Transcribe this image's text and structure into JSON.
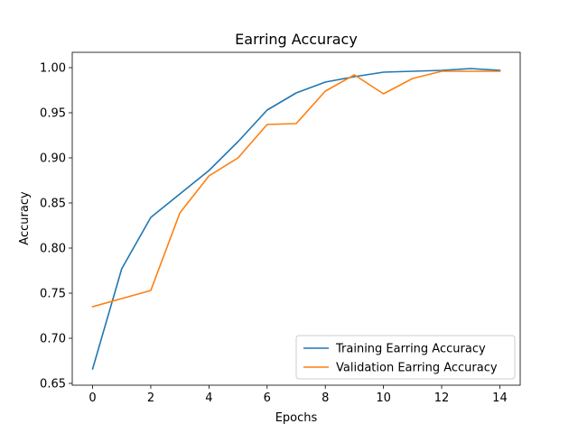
{
  "chart_data": {
    "type": "line",
    "title": "Earring Accuracy",
    "xlabel": "Epochs",
    "ylabel": "Accuracy",
    "xlim": [
      -0.7,
      14.7
    ],
    "ylim": [
      0.648,
      1.017
    ],
    "xticks": [
      0,
      2,
      4,
      6,
      8,
      10,
      12,
      14
    ],
    "xtick_labels": [
      "0",
      "2",
      "4",
      "6",
      "8",
      "10",
      "12",
      "14"
    ],
    "yticks": [
      0.65,
      0.7,
      0.75,
      0.8,
      0.85,
      0.9,
      0.95,
      1.0
    ],
    "ytick_labels": [
      "0.65",
      "0.70",
      "0.75",
      "0.80",
      "0.85",
      "0.90",
      "0.95",
      "1.00"
    ],
    "grid": false,
    "legend_position": "lower-right",
    "x": [
      0,
      1,
      2,
      3,
      4,
      5,
      6,
      7,
      8,
      9,
      10,
      11,
      12,
      13,
      14
    ],
    "series": [
      {
        "name": "Training Earring Accuracy",
        "color": "#1f77b4",
        "values": [
          0.666,
          0.777,
          0.834,
          0.86,
          0.886,
          0.918,
          0.953,
          0.972,
          0.984,
          0.99,
          0.995,
          0.996,
          0.997,
          0.999,
          0.997
        ]
      },
      {
        "name": "Validation Earring Accuracy",
        "color": "#ff7f0e",
        "values": [
          0.735,
          0.744,
          0.753,
          0.839,
          0.88,
          0.9,
          0.937,
          0.938,
          0.974,
          0.992,
          0.971,
          0.988,
          0.996,
          0.996,
          0.996
        ]
      }
    ]
  }
}
